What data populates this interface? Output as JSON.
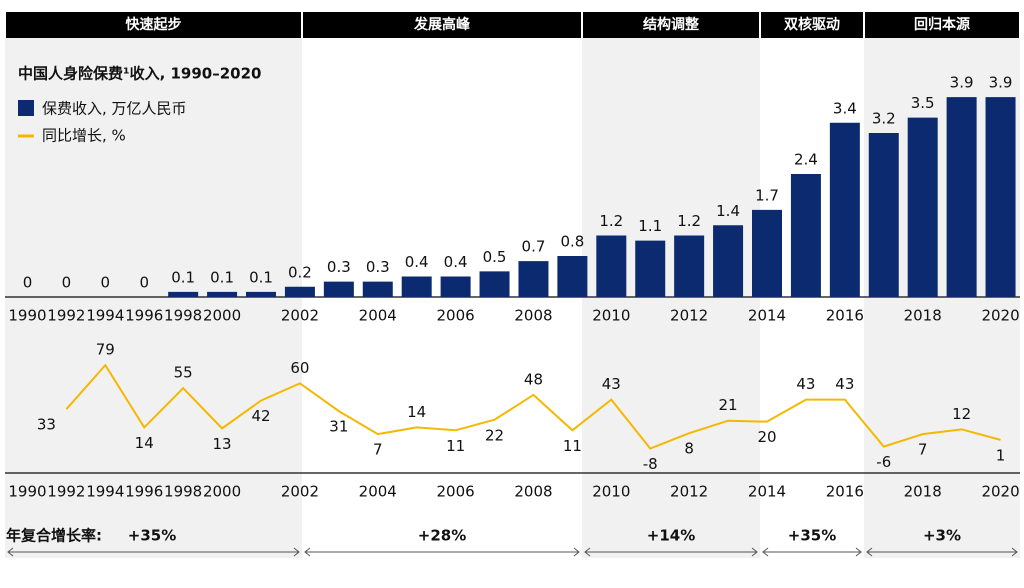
{
  "phases": [
    {
      "name": "快速起步",
      "cagr": "+35%"
    },
    {
      "name": "发展高峰",
      "cagr": "+28%"
    },
    {
      "name": "结构调整",
      "cagr": "+14%"
    },
    {
      "name": "双核驱动",
      "cagr": "+35%"
    },
    {
      "name": "回归本源",
      "cagr": "+3%"
    }
  ],
  "cagr_label": "年复合增长率:",
  "chart_data": [
    {
      "type": "bar",
      "title": "中国人身险保费¹收入, 1990–2020",
      "categories": [
        "1990",
        "1992",
        "1994",
        "1996",
        "1998",
        "2000",
        null,
        "2002",
        null,
        "2004",
        null,
        "2006",
        null,
        "2008",
        null,
        "2010",
        null,
        "2012",
        null,
        "2014",
        null,
        "2016",
        null,
        "2018",
        null,
        "2020"
      ],
      "series": [
        {
          "name": "保费收入, 万亿人民币",
          "color": "#0b2a6f",
          "values": [
            0,
            0,
            0,
            0,
            0.1,
            0.1,
            0.1,
            0.2,
            0.3,
            0.3,
            0.4,
            0.4,
            0.5,
            0.7,
            0.8,
            1.2,
            1.1,
            1.2,
            1.4,
            1.7,
            2.4,
            3.4,
            3.2,
            3.5,
            3.9,
            3.9
          ]
        }
      ],
      "ylim": [
        0,
        4
      ]
    },
    {
      "type": "line",
      "categories": [
        "1990",
        "1992",
        "1994",
        "1996",
        "1998",
        "2000",
        null,
        "2002",
        null,
        "2004",
        null,
        "2006",
        null,
        "2008",
        null,
        "2010",
        null,
        "2012",
        null,
        "2014",
        null,
        "2016",
        null,
        "2018",
        null,
        "2020"
      ],
      "series": [
        {
          "name": "同比增长, %",
          "color": "#f5b800",
          "values": [
            null,
            33,
            79,
            14,
            55,
            13,
            42,
            60,
            31,
            7,
            14,
            11,
            22,
            48,
            11,
            43,
            -8,
            8,
            21,
            20,
            43,
            43,
            -6,
            7,
            12,
            1
          ]
        }
      ],
      "ylim": [
        -20,
        100
      ]
    }
  ]
}
